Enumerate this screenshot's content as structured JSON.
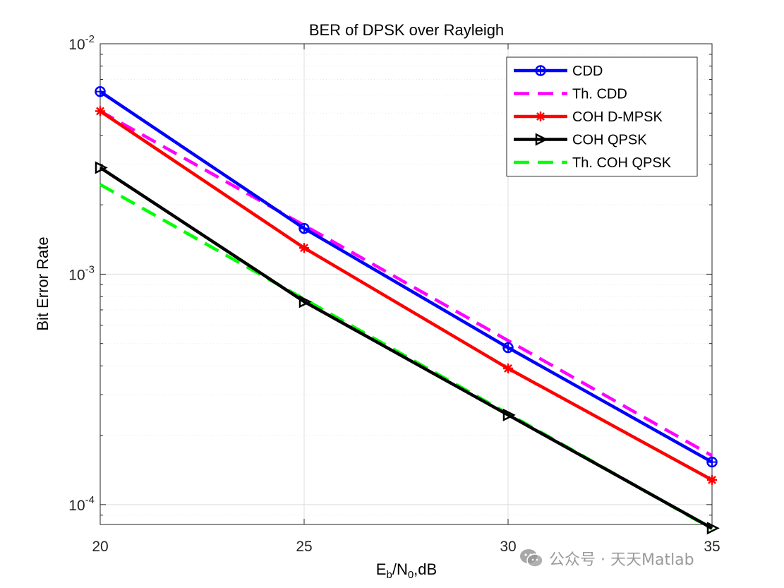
{
  "chart_data": {
    "type": "line",
    "title": "BER of DPSK over Rayleigh",
    "xlabel": {
      "base": "E",
      "sub1": "b",
      "mid": "/N",
      "sub2": "0",
      "tail": ",dB"
    },
    "ylabel": "Bit Error Rate",
    "xscale": "linear",
    "yscale": "log",
    "xlim": [
      20,
      35
    ],
    "ylim": [
      8.2e-05,
      0.01
    ],
    "x_ticks": [
      "20",
      "25",
      "30",
      "35"
    ],
    "y_ticks": [
      {
        "value": 0.01,
        "base": "10",
        "exp": "-2"
      },
      {
        "value": 0.001,
        "base": "10",
        "exp": "-3"
      },
      {
        "value": 0.0001,
        "base": "10",
        "exp": "-4"
      }
    ],
    "grid": true,
    "legend_position": "top-right",
    "x": [
      20,
      25,
      30,
      35
    ],
    "series": [
      {
        "name": "CDD",
        "color": "#0000ff",
        "style": "solid",
        "marker": "circle-plus",
        "values": [
          0.0062,
          0.00158,
          0.00048,
          0.000153
        ]
      },
      {
        "name": "Th. CDD",
        "color": "#ff00ff",
        "style": "dashed",
        "marker": "none",
        "values": [
          0.0051,
          0.00163,
          0.000515,
          0.000163
        ]
      },
      {
        "name": "COH D-MPSK",
        "color": "#ff0000",
        "style": "solid",
        "marker": "asterisk",
        "values": [
          0.0051,
          0.0013,
          0.00039,
          0.000128
        ]
      },
      {
        "name": "COH QPSK",
        "color": "#000000",
        "style": "solid",
        "marker": "triangle-right",
        "values": [
          0.0029,
          0.00076,
          0.000245,
          7.9e-05
        ]
      },
      {
        "name": "Th. COH QPSK",
        "color": "#00ff00",
        "style": "dashed",
        "marker": "none",
        "values": [
          0.00245,
          0.00078,
          0.000248,
          7.85e-05
        ]
      }
    ]
  },
  "watermark": {
    "text": "公众号 · 天天Matlab",
    "icon": "wechat-icon"
  }
}
